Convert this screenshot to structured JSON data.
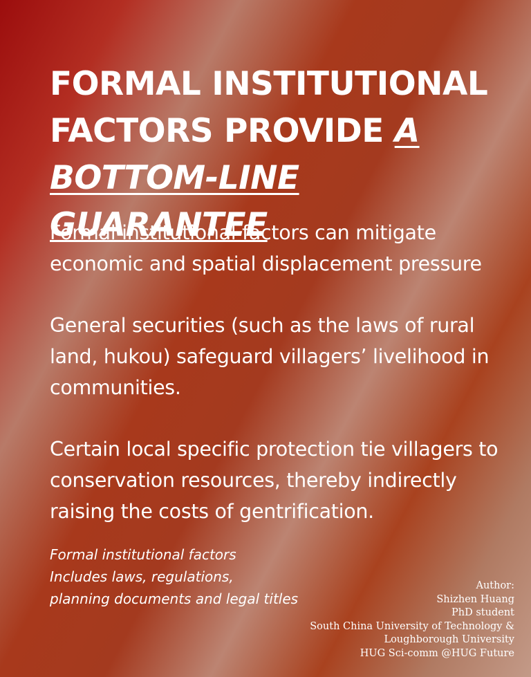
{
  "title": {
    "line1": "FORMAL INSTITUTIONAL",
    "line2_plain": "FACTORS PROVIDE ",
    "line2_emph": "A",
    "line3_emph": "BOTTOM-LINE GUARANTEE"
  },
  "paragraphs": [
    "Formal institutional factors can mitigate economic and spatial displacement pressure",
    "General securities (such as the laws of rural land, hukou) safeguard villagers’ livelihood in communities.",
    "Certain local specific protection tie villagers to conservation resources, thereby indirectly raising the costs of gentrification."
  ],
  "definition_note": [
    "Formal institutional factors",
    "Includes laws, regulations,",
    "planning documents and legal titles"
  ],
  "author_block": [
    "Author:",
    "Shizhen Huang",
    "PhD student",
    "South China University of Technology &",
    "Loughborough University",
    "HUG Sci-comm  @HUG Future"
  ]
}
